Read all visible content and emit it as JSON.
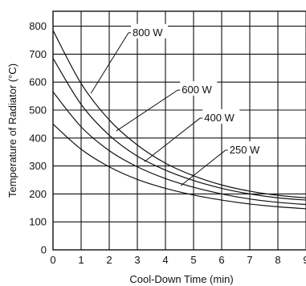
{
  "chart_data": {
    "type": "line",
    "title": "",
    "xlabel": "Cool-Down Time (min)",
    "ylabel": "Temperature of Radiator (°C)",
    "xlim": [
      0,
      9
    ],
    "ylim": [
      0,
      850
    ],
    "grid": true,
    "x_ticks": [
      "0",
      "1",
      "2",
      "3",
      "4",
      "5",
      "6",
      "7",
      "8",
      "9"
    ],
    "y_ticks": [
      "0",
      "100",
      "200",
      "300",
      "400",
      "500",
      "600",
      "700",
      "800"
    ],
    "series": [
      {
        "name": "800 W",
        "x": [
          0,
          1,
          2,
          3,
          4,
          5,
          6,
          7,
          8,
          9
        ],
        "y": [
          785,
          595,
          465,
          375,
          310,
          265,
          232,
          210,
          195,
          186
        ]
      },
      {
        "name": "600 W",
        "x": [
          0,
          1,
          2,
          3,
          4,
          5,
          6,
          7,
          8,
          9
        ],
        "y": [
          685,
          520,
          410,
          335,
          285,
          248,
          220,
          200,
          186,
          178
        ]
      },
      {
        "name": "400 W",
        "x": [
          0,
          1,
          2,
          3,
          4,
          5,
          6,
          7,
          8,
          9
        ],
        "y": [
          565,
          440,
          355,
          297,
          255,
          224,
          200,
          182,
          170,
          162
        ]
      },
      {
        "name": "250 W",
        "x": [
          0,
          1,
          2,
          3,
          4,
          5,
          6,
          7,
          8,
          9
        ],
        "y": [
          450,
          360,
          297,
          252,
          220,
          196,
          178,
          164,
          154,
          147
        ]
      }
    ],
    "labels": [
      {
        "text": "800 W",
        "series": "800 W",
        "anchor_x": 1.35,
        "anchor_y": 560,
        "text_x": 2.8,
        "text_y": 765
      },
      {
        "text": "600 W",
        "series": "600 W",
        "anchor_x": 2.25,
        "anchor_y": 425,
        "text_x": 4.55,
        "text_y": 560
      },
      {
        "text": "400 W",
        "series": "400 W",
        "anchor_x": 3.25,
        "anchor_y": 315,
        "text_x": 5.35,
        "text_y": 460
      },
      {
        "text": "250 W",
        "series": "250 W",
        "anchor_x": 4.55,
        "anchor_y": 230,
        "text_x": 6.25,
        "text_y": 345
      }
    ]
  }
}
